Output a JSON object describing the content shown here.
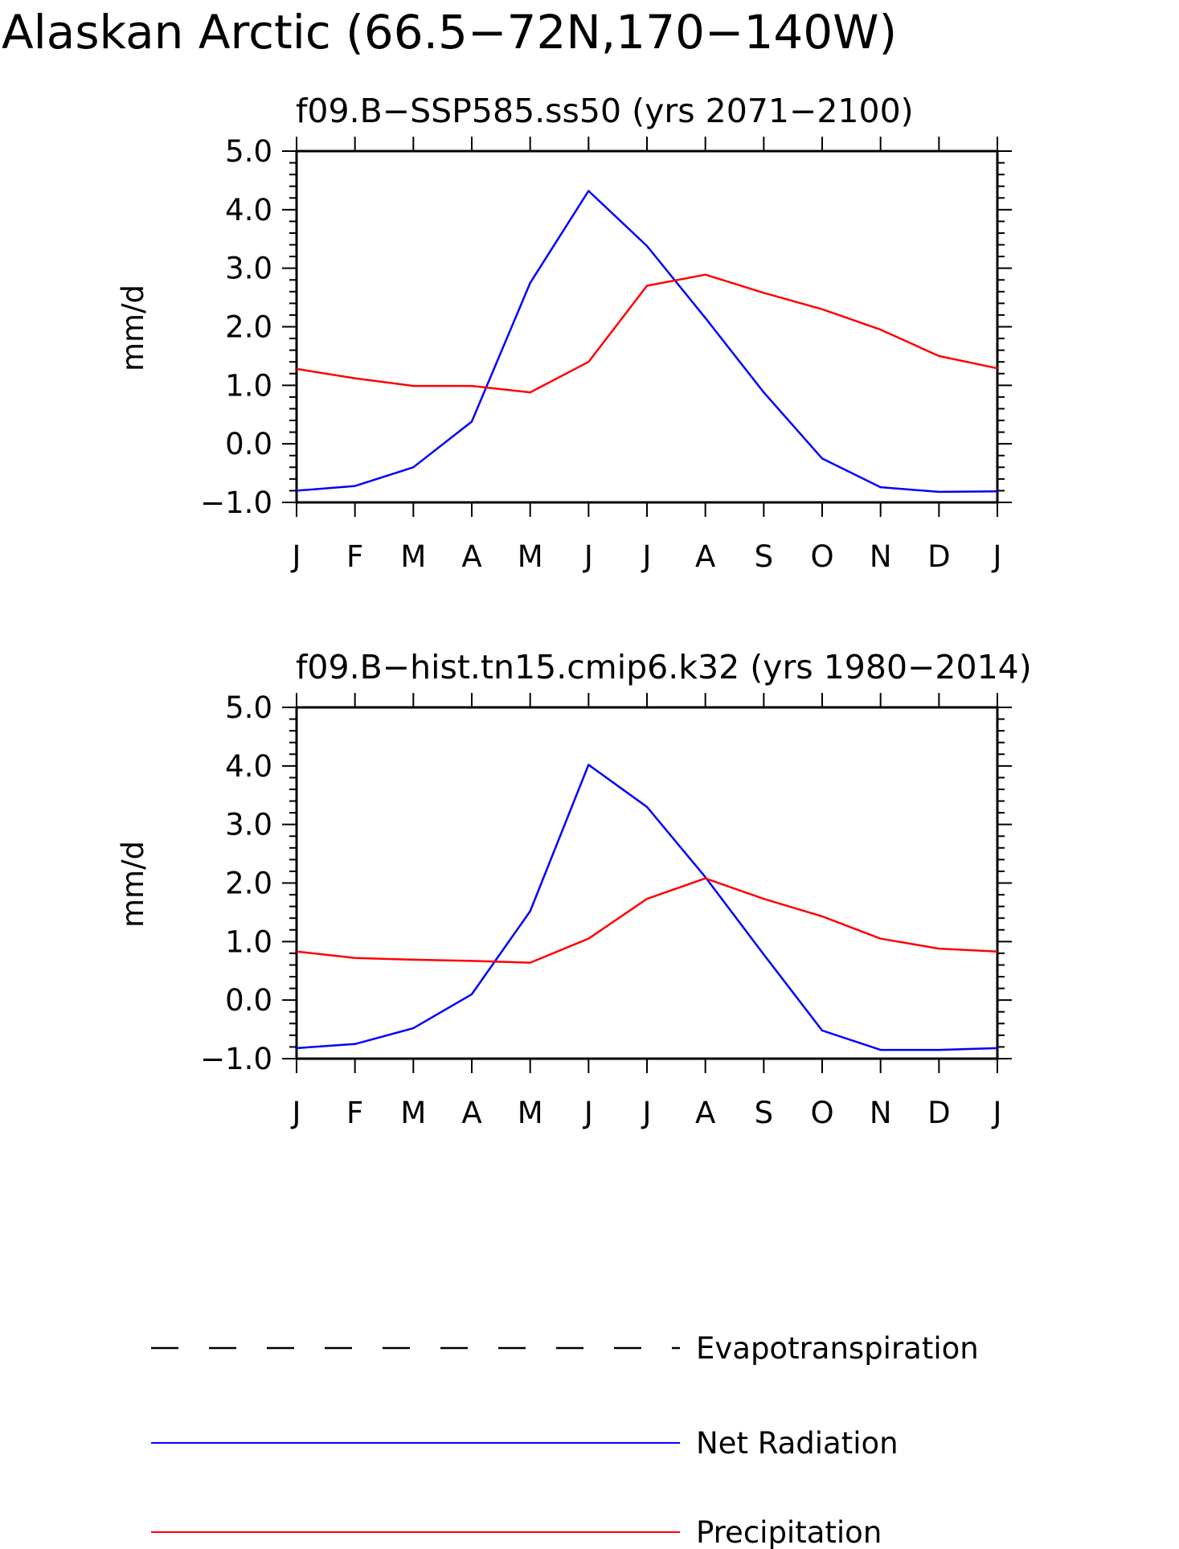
{
  "title": "Alaskan Arctic (66.5−72N,170−140W)",
  "legend": [
    {
      "label": "Evapotranspiration",
      "color": "#000000",
      "style": "dashed"
    },
    {
      "label": "Net Radiation",
      "color": "#0000ff",
      "style": "solid"
    },
    {
      "label": "Precipitation",
      "color": "#ff0000",
      "style": "solid"
    }
  ],
  "chart_data": [
    {
      "type": "line",
      "title": "f09.B−SSP585.ss50 (yrs 2071−2100)",
      "ylabel": "mm/d",
      "xlabel": "",
      "ylim": [
        -1.0,
        5.0
      ],
      "yticks": [
        "5.0",
        "4.0",
        "3.0",
        "2.0",
        "1.0",
        "0.0",
        "−1.0"
      ],
      "categories": [
        "J",
        "F",
        "M",
        "A",
        "M",
        "J",
        "J",
        "A",
        "S",
        "O",
        "N",
        "D",
        "J"
      ],
      "series": [
        {
          "name": "Net Radiation",
          "color": "#0000ff",
          "values": [
            -0.8,
            -0.72,
            -0.4,
            0.38,
            2.75,
            4.32,
            3.38,
            2.15,
            0.88,
            -0.25,
            -0.74,
            -0.82,
            -0.81
          ]
        },
        {
          "name": "Precipitation",
          "color": "#ff0000",
          "values": [
            1.28,
            1.12,
            0.99,
            0.99,
            0.88,
            1.4,
            2.7,
            2.89,
            2.58,
            2.3,
            1.95,
            1.5,
            1.29
          ]
        }
      ]
    },
    {
      "type": "line",
      "title": "f09.B−hist.tn15.cmip6.k32 (yrs 1980−2014)",
      "ylabel": "mm/d",
      "xlabel": "",
      "ylim": [
        -1.0,
        5.0
      ],
      "yticks": [
        "5.0",
        "4.0",
        "3.0",
        "2.0",
        "1.0",
        "0.0",
        "−1.0"
      ],
      "categories": [
        "J",
        "F",
        "M",
        "A",
        "M",
        "J",
        "J",
        "A",
        "S",
        "O",
        "N",
        "D",
        "J"
      ],
      "series": [
        {
          "name": "Net Radiation",
          "color": "#0000ff",
          "values": [
            -0.82,
            -0.75,
            -0.48,
            0.1,
            1.52,
            4.02,
            3.3,
            2.1,
            0.78,
            -0.52,
            -0.85,
            -0.85,
            -0.82
          ]
        },
        {
          "name": "Precipitation",
          "color": "#ff0000",
          "values": [
            0.83,
            0.72,
            0.69,
            0.67,
            0.64,
            1.05,
            1.73,
            2.08,
            1.73,
            1.43,
            1.05,
            0.88,
            0.83
          ]
        }
      ]
    }
  ]
}
